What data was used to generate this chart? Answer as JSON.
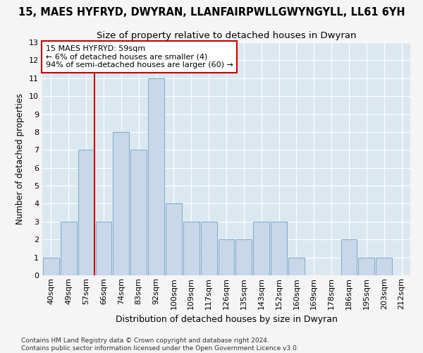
{
  "title1": "15, MAES HYFRYD, DWYRAN, LLANFAIRPWLLGWYNGYLL, LL61 6YH",
  "title2": "Size of property relative to detached houses in Dwyran",
  "xlabel": "Distribution of detached houses by size in Dwyran",
  "ylabel": "Number of detached properties",
  "categories": [
    "40sqm",
    "49sqm",
    "57sqm",
    "66sqm",
    "74sqm",
    "83sqm",
    "92sqm",
    "100sqm",
    "109sqm",
    "117sqm",
    "126sqm",
    "135sqm",
    "143sqm",
    "152sqm",
    "160sqm",
    "169sqm",
    "178sqm",
    "186sqm",
    "195sqm",
    "203sqm",
    "212sqm"
  ],
  "values": [
    1,
    3,
    7,
    3,
    8,
    7,
    11,
    4,
    3,
    3,
    2,
    2,
    3,
    3,
    1,
    0,
    0,
    2,
    1,
    1,
    0
  ],
  "bar_color": "#c8d8ea",
  "bar_edge_color": "#7aaac8",
  "vline_x_index": 2,
  "vline_color": "#cc0000",
  "annotation_text": "15 MAES HYFRYD: 59sqm\n← 6% of detached houses are smaller (4)\n94% of semi-detached houses are larger (60) →",
  "annotation_box_color": "white",
  "annotation_box_edge": "#cc0000",
  "ylim": [
    0,
    13
  ],
  "yticks": [
    0,
    1,
    2,
    3,
    4,
    5,
    6,
    7,
    8,
    9,
    10,
    11,
    12,
    13
  ],
  "footer": "Contains HM Land Registry data © Crown copyright and database right 2024.\nContains public sector information licensed under the Open Government Licence v3.0.",
  "fig_bg_color": "#f5f5f5",
  "plot_bg_color": "#dce8f0",
  "grid_color": "#ffffff",
  "title1_fontsize": 10.5,
  "title2_fontsize": 9.5,
  "xlabel_fontsize": 9,
  "ylabel_fontsize": 8.5,
  "tick_fontsize": 8,
  "annotation_fontsize": 8,
  "footer_fontsize": 6.5
}
